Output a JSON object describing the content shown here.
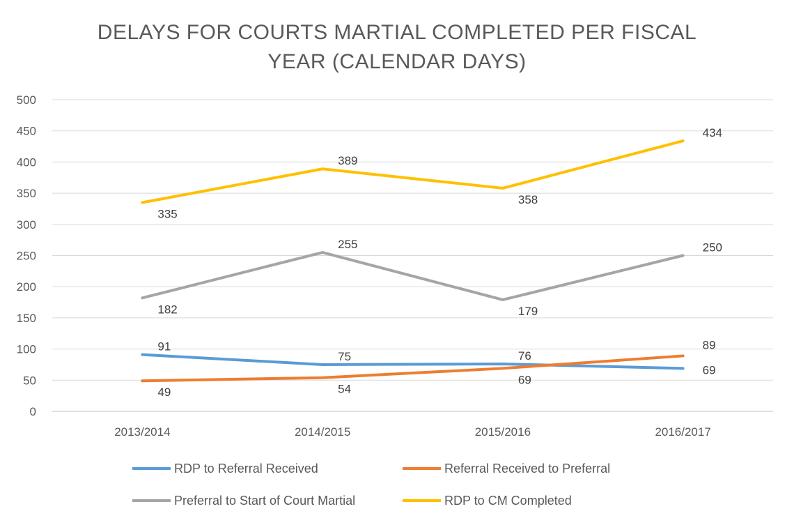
{
  "chart_data": {
    "type": "line",
    "title_lines": [
      "DELAYS FOR COURTS MARTIAL COMPLETED PER FISCAL",
      "YEAR (CALENDAR DAYS)"
    ],
    "categories": [
      "2013/2014",
      "2014/2015",
      "2015/2016",
      "2016/2017"
    ],
    "ylim": [
      0,
      500
    ],
    "yticks": [
      0,
      50,
      100,
      150,
      200,
      250,
      300,
      350,
      400,
      450,
      500
    ],
    "grid": true,
    "legend_position": "bottom",
    "series": [
      {
        "name": "RDP to Referral Received",
        "color": "#5B9BD5",
        "values": [
          91,
          75,
          76,
          69
        ]
      },
      {
        "name": "Referral Received to Preferral",
        "color": "#ED7D31",
        "values": [
          49,
          54,
          69,
          89
        ]
      },
      {
        "name": "Preferral to Start of Court Martial",
        "color": "#A5A5A5",
        "values": [
          182,
          255,
          179,
          250
        ]
      },
      {
        "name": "RDP to CM Completed",
        "color": "#FFC000",
        "values": [
          335,
          389,
          358,
          434
        ]
      }
    ]
  }
}
